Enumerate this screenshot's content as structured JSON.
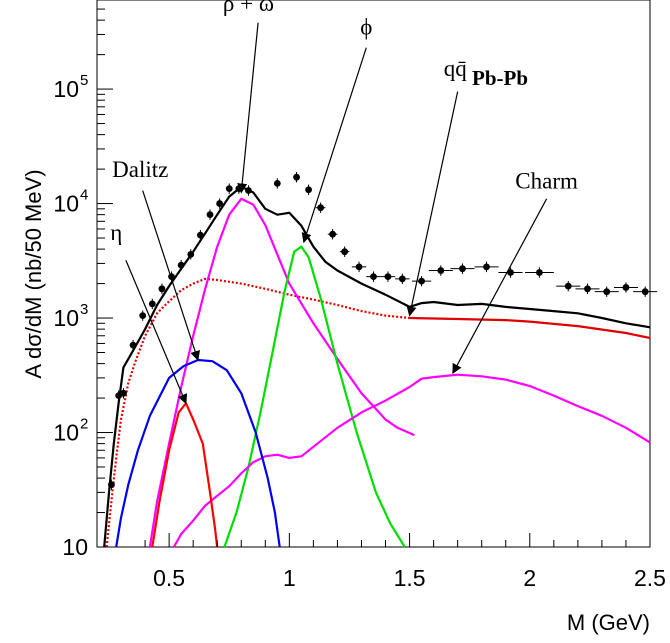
{
  "chart_data": {
    "type": "line",
    "title": "",
    "xlabel": "M (GeV)",
    "ylabel": "A dσ/dM (nb/50 MeV)",
    "xlim": [
      0.2,
      2.5
    ],
    "ylim": [
      10,
      600000
    ],
    "yscale": "log",
    "grid": false,
    "system_label": "Pb-Pb",
    "x_ticks": [
      {
        "value": 0.5,
        "label": "0.5"
      },
      {
        "value": 1,
        "label": "1"
      },
      {
        "value": 1.5,
        "label": "1.5"
      },
      {
        "value": 2,
        "label": "2"
      },
      {
        "value": 2.5,
        "label": "2.5"
      }
    ],
    "y_ticks": [
      {
        "value": 10,
        "base": "10",
        "exp": ""
      },
      {
        "value": 100,
        "base": "10",
        "exp": "2"
      },
      {
        "value": 1000,
        "base": "10",
        "exp": "3"
      },
      {
        "value": 10000,
        "base": "10",
        "exp": "4"
      },
      {
        "value": 100000,
        "base": "10",
        "exp": "5"
      }
    ],
    "series": [
      {
        "key": "total",
        "color": "#000000",
        "dash": "",
        "points": [
          [
            0.23,
            10
          ],
          [
            0.25,
            30
          ],
          [
            0.27,
            80
          ],
          [
            0.29,
            180
          ],
          [
            0.31,
            370
          ],
          [
            0.35,
            520
          ],
          [
            0.4,
            800
          ],
          [
            0.45,
            1300
          ],
          [
            0.5,
            1900
          ],
          [
            0.55,
            2700
          ],
          [
            0.6,
            3800
          ],
          [
            0.65,
            5500
          ],
          [
            0.7,
            8000
          ],
          [
            0.75,
            11500
          ],
          [
            0.8,
            14000
          ],
          [
            0.85,
            12500
          ],
          [
            0.9,
            9000
          ],
          [
            0.95,
            8000
          ],
          [
            1.0,
            8300
          ],
          [
            1.05,
            6400
          ],
          [
            1.1,
            4200
          ],
          [
            1.15,
            3100
          ],
          [
            1.2,
            2600
          ],
          [
            1.3,
            2000
          ],
          [
            1.4,
            1600
          ],
          [
            1.5,
            1250
          ],
          [
            1.55,
            1350
          ],
          [
            1.6,
            1380
          ],
          [
            1.7,
            1300
          ],
          [
            1.8,
            1330
          ],
          [
            1.9,
            1250
          ],
          [
            2.0,
            1200
          ],
          [
            2.1,
            1150
          ],
          [
            2.2,
            1100
          ],
          [
            2.3,
            1000
          ],
          [
            2.4,
            900
          ],
          [
            2.5,
            830
          ]
        ]
      },
      {
        "key": "qqbar",
        "color": "#e00000",
        "dash": "2,2",
        "points": [
          [
            0.24,
            10
          ],
          [
            0.26,
            25
          ],
          [
            0.28,
            60
          ],
          [
            0.3,
            130
          ],
          [
            0.33,
            270
          ],
          [
            0.36,
            420
          ],
          [
            0.4,
            700
          ],
          [
            0.45,
            1100
          ],
          [
            0.5,
            1400
          ],
          [
            0.55,
            1750
          ],
          [
            0.6,
            2000
          ],
          [
            0.65,
            2200
          ],
          [
            0.7,
            2150
          ],
          [
            0.8,
            2000
          ],
          [
            0.9,
            1800
          ],
          [
            1.0,
            1600
          ],
          [
            1.1,
            1450
          ],
          [
            1.2,
            1300
          ],
          [
            1.3,
            1150
          ],
          [
            1.4,
            1050
          ],
          [
            1.5,
            1000
          ]
        ]
      },
      {
        "key": "qqbar_solid",
        "color": "#e00000",
        "dash": "",
        "points": [
          [
            1.5,
            1000
          ],
          [
            1.7,
            980
          ],
          [
            1.9,
            960
          ],
          [
            2.0,
            930
          ],
          [
            2.2,
            850
          ],
          [
            2.4,
            740
          ],
          [
            2.5,
            670
          ]
        ]
      },
      {
        "key": "rho_omega",
        "color": "#ff00ff",
        "dash": "",
        "points": [
          [
            0.42,
            10
          ],
          [
            0.45,
            25
          ],
          [
            0.5,
            80
          ],
          [
            0.55,
            250
          ],
          [
            0.6,
            700
          ],
          [
            0.65,
            1800
          ],
          [
            0.7,
            4200
          ],
          [
            0.75,
            8000
          ],
          [
            0.8,
            11000
          ],
          [
            0.85,
            9800
          ],
          [
            0.9,
            6500
          ],
          [
            0.95,
            3600
          ],
          [
            1.0,
            2000
          ],
          [
            1.1,
            900
          ],
          [
            1.2,
            440
          ],
          [
            1.3,
            220
          ],
          [
            1.4,
            130
          ],
          [
            1.45,
            110
          ],
          [
            1.52,
            95
          ]
        ]
      },
      {
        "key": "phi",
        "color": "#00dd00",
        "dash": "",
        "points": [
          [
            0.73,
            10
          ],
          [
            0.78,
            20
          ],
          [
            0.83,
            50
          ],
          [
            0.88,
            150
          ],
          [
            0.93,
            500
          ],
          [
            0.98,
            1700
          ],
          [
            1.02,
            3800
          ],
          [
            1.05,
            4200
          ],
          [
            1.08,
            3400
          ],
          [
            1.13,
            1500
          ],
          [
            1.2,
            400
          ],
          [
            1.28,
            100
          ],
          [
            1.36,
            30
          ],
          [
            1.42,
            16
          ],
          [
            1.48,
            10
          ]
        ]
      },
      {
        "key": "charm",
        "color": "#ff00ff",
        "dash": "",
        "points": [
          [
            0.52,
            10
          ],
          [
            0.55,
            13
          ],
          [
            0.6,
            17
          ],
          [
            0.65,
            23
          ],
          [
            0.7,
            28
          ],
          [
            0.75,
            34
          ],
          [
            0.8,
            44
          ],
          [
            0.85,
            55
          ],
          [
            0.9,
            62
          ],
          [
            0.95,
            64
          ],
          [
            1.0,
            60
          ],
          [
            1.05,
            62
          ],
          [
            1.1,
            75
          ],
          [
            1.2,
            110
          ],
          [
            1.3,
            150
          ],
          [
            1.4,
            190
          ],
          [
            1.5,
            250
          ],
          [
            1.55,
            295
          ],
          [
            1.6,
            305
          ],
          [
            1.7,
            320
          ],
          [
            1.8,
            310
          ],
          [
            1.9,
            290
          ],
          [
            2.0,
            255
          ],
          [
            2.1,
            210
          ],
          [
            2.2,
            170
          ],
          [
            2.3,
            140
          ],
          [
            2.4,
            110
          ],
          [
            2.5,
            82
          ]
        ]
      },
      {
        "key": "eta",
        "color": "#ff0000",
        "dash": "",
        "points": [
          [
            0.43,
            10
          ],
          [
            0.46,
            25
          ],
          [
            0.5,
            70
          ],
          [
            0.54,
            150
          ],
          [
            0.57,
            180
          ],
          [
            0.6,
            130
          ],
          [
            0.64,
            80
          ],
          [
            0.67,
            30
          ],
          [
            0.69,
            15
          ],
          [
            0.7,
            10
          ]
        ]
      },
      {
        "key": "dalitz",
        "color": "#0000ee",
        "dash": "",
        "points": [
          [
            0.28,
            10
          ],
          [
            0.3,
            18
          ],
          [
            0.33,
            35
          ],
          [
            0.37,
            70
          ],
          [
            0.42,
            140
          ],
          [
            0.5,
            300
          ],
          [
            0.56,
            380
          ],
          [
            0.62,
            430
          ],
          [
            0.68,
            420
          ],
          [
            0.74,
            350
          ],
          [
            0.8,
            220
          ],
          [
            0.86,
            100
          ],
          [
            0.91,
            40
          ],
          [
            0.94,
            20
          ],
          [
            0.96,
            10
          ]
        ]
      }
    ],
    "data_points": [
      {
        "x": 0.26,
        "y": 35,
        "ex": 0.01
      },
      {
        "x": 0.29,
        "y": 210,
        "ex": 0.01
      },
      {
        "x": 0.31,
        "y": 220,
        "ex": 0.01
      },
      {
        "x": 0.35,
        "y": 580,
        "ex": 0.01
      },
      {
        "x": 0.39,
        "y": 1050,
        "ex": 0.01
      },
      {
        "x": 0.43,
        "y": 1330,
        "ex": 0.01
      },
      {
        "x": 0.47,
        "y": 1800,
        "ex": 0.01
      },
      {
        "x": 0.51,
        "y": 2300,
        "ex": 0.01
      },
      {
        "x": 0.55,
        "y": 2900,
        "ex": 0.01
      },
      {
        "x": 0.59,
        "y": 3600,
        "ex": 0.01
      },
      {
        "x": 0.63,
        "y": 5300,
        "ex": 0.01
      },
      {
        "x": 0.67,
        "y": 8000,
        "ex": 0.01
      },
      {
        "x": 0.71,
        "y": 10000,
        "ex": 0.01
      },
      {
        "x": 0.75,
        "y": 13500,
        "ex": 0.01
      },
      {
        "x": 0.79,
        "y": 13500,
        "ex": 0.01
      },
      {
        "x": 0.83,
        "y": 13000,
        "ex": 0.01
      },
      {
        "x": 0.95,
        "y": 15000,
        "ex": 0.01
      },
      {
        "x": 1.03,
        "y": 17000,
        "ex": 0.01
      },
      {
        "x": 1.08,
        "y": 13200,
        "ex": 0.01
      },
      {
        "x": 1.13,
        "y": 9200,
        "ex": 0.02
      },
      {
        "x": 1.18,
        "y": 5400,
        "ex": 0.02
      },
      {
        "x": 1.23,
        "y": 3800,
        "ex": 0.02
      },
      {
        "x": 1.29,
        "y": 2800,
        "ex": 0.03
      },
      {
        "x": 1.35,
        "y": 2300,
        "ex": 0.03
      },
      {
        "x": 1.41,
        "y": 2300,
        "ex": 0.03
      },
      {
        "x": 1.47,
        "y": 2200,
        "ex": 0.03
      },
      {
        "x": 1.55,
        "y": 2100,
        "ex": 0.04
      },
      {
        "x": 1.63,
        "y": 2600,
        "ex": 0.05
      },
      {
        "x": 1.72,
        "y": 2700,
        "ex": 0.05
      },
      {
        "x": 1.82,
        "y": 2800,
        "ex": 0.05
      },
      {
        "x": 1.92,
        "y": 2500,
        "ex": 0.05
      },
      {
        "x": 2.04,
        "y": 2500,
        "ex": 0.06
      },
      {
        "x": 2.16,
        "y": 1900,
        "ex": 0.05
      },
      {
        "x": 2.24,
        "y": 1800,
        "ex": 0.05
      },
      {
        "x": 2.32,
        "y": 1700,
        "ex": 0.05
      },
      {
        "x": 2.4,
        "y": 1850,
        "ex": 0.05
      },
      {
        "x": 2.48,
        "y": 1700,
        "ex": 0.05
      }
    ],
    "annotations": [
      {
        "key": "rho_omega",
        "text": "ρ + ω",
        "text_at": [
          0.83,
          480000
        ],
        "tail": [
          0.87,
          380000
        ],
        "head": [
          0.8,
          12500
        ]
      },
      {
        "key": "phi",
        "text": "ϕ",
        "text_at": [
          1.32,
          300000
        ],
        "tail": [
          1.32,
          230000
        ],
        "head": [
          1.06,
          4600
        ]
      },
      {
        "key": "qqbar",
        "text": "qq̄",
        "text_at": [
          1.69,
          130000
        ],
        "tail": [
          1.7,
          95000
        ],
        "head": [
          1.5,
          1050
        ]
      },
      {
        "key": "dalitz",
        "text": "Dalitz",
        "text_at": [
          0.38,
          17000
        ],
        "tail": [
          0.39,
          13000
        ],
        "head": [
          0.62,
          430
        ]
      },
      {
        "key": "charm",
        "text": "Charm",
        "text_at": [
          2.07,
          13500
        ],
        "tail": [
          2.07,
          11000
        ],
        "head": [
          1.68,
          330
        ]
      },
      {
        "key": "eta",
        "text": "η",
        "text_at": [
          0.28,
          4800
        ],
        "tail": [
          0.32,
          3200
        ],
        "head": [
          0.57,
          180
        ]
      }
    ]
  }
}
